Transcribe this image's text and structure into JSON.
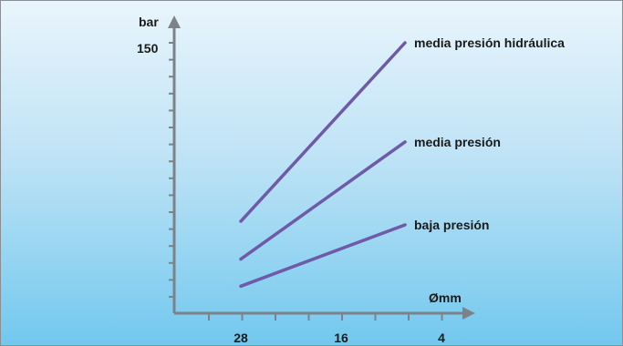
{
  "chart_data": {
    "type": "line",
    "ylabel": "bar",
    "xlabel": "Ømm",
    "y_tick_label": "150",
    "x_tick_labels": [
      "28",
      "16",
      "4"
    ],
    "x_reversed": true,
    "x": [
      28,
      4
    ],
    "ylim": [
      0,
      150
    ],
    "grid": false,
    "series": [
      {
        "name": "media presión hidráulica",
        "values": [
          51,
          150
        ]
      },
      {
        "name": "media presión",
        "values": [
          30,
          95
        ]
      },
      {
        "name": "baja presión",
        "values": [
          15,
          49
        ]
      }
    ],
    "colors": {
      "line": "#6f5aa8",
      "axis": "#7d8288"
    }
  }
}
